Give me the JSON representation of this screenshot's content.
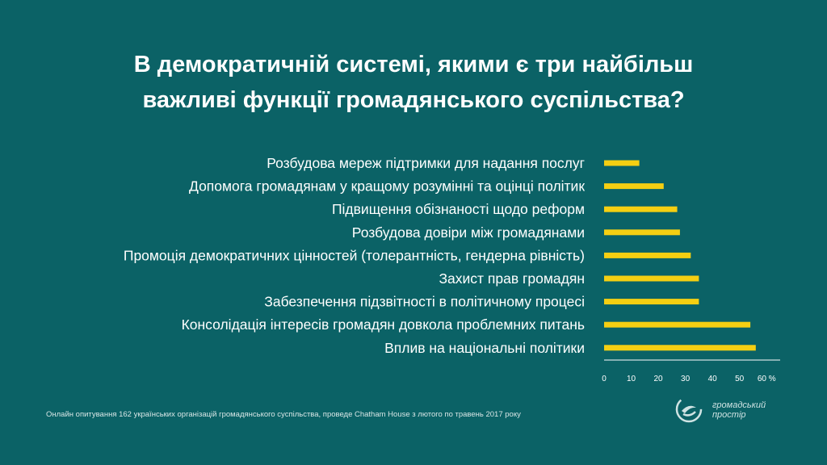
{
  "title_line1": "В демократичній системі, якими є три найбільш",
  "title_line2": "важливі функції громадянського суспільства?",
  "footnote": "Онлайн опитування 162 українських організацій громадянського суспільства, проведе Chatham House з лютого по травень 2017 року",
  "logo": {
    "line1": "громадський",
    "line2": "простір",
    "icon": "swirl-logo-icon"
  },
  "colors": {
    "background": "#0b6266",
    "bar": "#f5cf12",
    "text": "#ffffff",
    "axis": "#ffffff"
  },
  "chart_data": {
    "type": "bar",
    "orientation": "horizontal",
    "categories": [
      "Розбудова мереж підтримки для надання послуг",
      "Допомога громадянам у кращому розумінні та оцінці політик",
      "Підвищення обізнаності щодо реформ",
      "Розбудова довіри між громадянами",
      "Промоція демократичних цінностей (толерантність, гендерна рівність)",
      "Захист прав громадян",
      "Забезпечення підзвітності в політичному процесі",
      "Консолідація інтересів громадян довкола проблемних питань",
      "Вплив на національні політики"
    ],
    "values": [
      13,
      22,
      27,
      28,
      32,
      35,
      35,
      54,
      56
    ],
    "xlim": [
      0,
      65
    ],
    "xticks": [
      "0",
      "10",
      "20",
      "30",
      "40",
      "50",
      "60 %"
    ],
    "grid": false,
    "legend": "none"
  }
}
